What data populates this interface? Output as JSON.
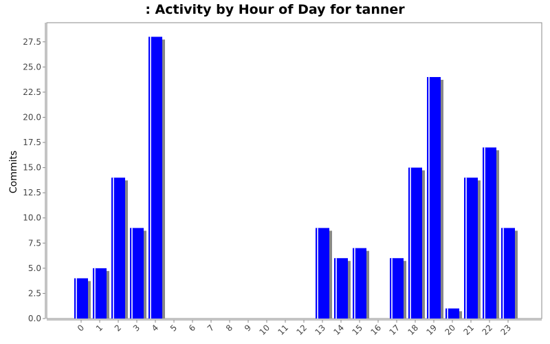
{
  "chart_data": {
    "type": "bar",
    "title": ": Activity by Hour of Day for tanner",
    "y_label": "Commits",
    "categories": [
      "0",
      "1",
      "2",
      "3",
      "4",
      "5",
      "6",
      "7",
      "8",
      "9",
      "10",
      "11",
      "12",
      "13",
      "14",
      "15",
      "16",
      "17",
      "18",
      "19",
      "20",
      "21",
      "22",
      "23"
    ],
    "values": [
      4,
      5,
      14,
      9,
      28,
      0,
      0,
      0,
      0,
      0,
      0,
      0,
      0,
      9,
      6,
      7,
      0,
      6,
      15,
      24,
      1,
      14,
      17,
      9
    ],
    "color": "#0000ff",
    "ylim": [
      0,
      29.4
    ],
    "yticks": [
      {
        "value": 0,
        "label": "0.0"
      },
      {
        "value": 2.5,
        "label": "2.5"
      },
      {
        "value": 5,
        "label": "5.0"
      },
      {
        "value": 7.5,
        "label": "7.5"
      },
      {
        "value": 10,
        "label": "10.0"
      },
      {
        "value": 12.5,
        "label": "12.5"
      },
      {
        "value": 15,
        "label": "15.0"
      },
      {
        "value": 17.5,
        "label": "17.5"
      },
      {
        "value": 20,
        "label": "20.0"
      },
      {
        "value": 22.5,
        "label": "22.5"
      },
      {
        "value": 25,
        "label": "25.0"
      },
      {
        "value": 27.5,
        "label": "27.5"
      }
    ]
  }
}
